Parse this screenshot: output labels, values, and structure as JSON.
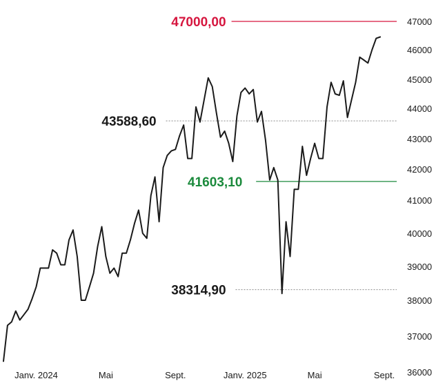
{
  "chart_data": {
    "type": "line",
    "title": "",
    "xlabel": "",
    "ylabel": "",
    "ylim": [
      36000,
      47000
    ],
    "y_ticks": [
      36000,
      37000,
      38000,
      39000,
      40000,
      41000,
      42000,
      43000,
      44000,
      45000,
      46000,
      47000
    ],
    "y_tick_labels": [
      "36000",
      "37000",
      "38000",
      "39000",
      "40000",
      "41000",
      "42000",
      "43000",
      "44000",
      "45000",
      "46000",
      "47000"
    ],
    "x_tick_labels": [
      "Janv. 2024",
      "Mai",
      "Sept.",
      "Janv. 2025",
      "Mai",
      "Sept."
    ],
    "x_tick_positions": [
      8,
      25,
      42,
      59,
      76,
      93
    ],
    "x_range": [
      0,
      94
    ],
    "grid": false,
    "legend": "none",
    "line_color": "#1a1a1a",
    "series": [
      {
        "values": [
          36300,
          37300,
          37400,
          37700,
          37450,
          37600,
          37750,
          38050,
          38400,
          38950,
          38950,
          38950,
          39500,
          39400,
          39050,
          39050,
          39800,
          40100,
          39300,
          38000,
          38000,
          38400,
          38800,
          39600,
          40200,
          39300,
          38800,
          38950,
          38700,
          39400,
          39400,
          39800,
          40300,
          40700,
          40000,
          39850,
          41150,
          41750,
          40350,
          42050,
          42450,
          42600,
          42650,
          43100,
          43450,
          42350,
          42350,
          44050,
          43550,
          44300,
          45050,
          44750,
          43850,
          43050,
          43250,
          42850,
          42250,
          43750,
          44550,
          44700,
          44500,
          44650,
          43550,
          43900,
          42950,
          41650,
          42050,
          41650,
          38200,
          40350,
          39300,
          41350,
          41350,
          42750,
          41800,
          42350,
          42850,
          42350,
          42350,
          44050,
          44900,
          44500,
          44450,
          44950,
          43700,
          44300,
          44900,
          45750,
          45650,
          45550,
          46000,
          46400,
          46450
        ]
      }
    ],
    "annotations": [
      {
        "label": "47000,00",
        "value": 47000,
        "color": "#d6163f",
        "style": "solid",
        "x_start": 54,
        "x_end": 94,
        "text_right_x": 54
      },
      {
        "label": "43588,60",
        "value": 43588.6,
        "color": "#8a8a8a",
        "style": "dotted",
        "x_start": 38,
        "x_end": 94,
        "text_right_x": 37
      },
      {
        "label": "41603,10",
        "value": 41603.1,
        "color": "#1b8a3c",
        "style": "solid",
        "x_start": 60,
        "x_end": 94,
        "text_right_x": 58
      },
      {
        "label": "38314,90",
        "value": 38314.9,
        "color": "#8a8a8a",
        "style": "dotted",
        "x_start": 55,
        "x_end": 94,
        "text_right_x": 54
      }
    ]
  }
}
